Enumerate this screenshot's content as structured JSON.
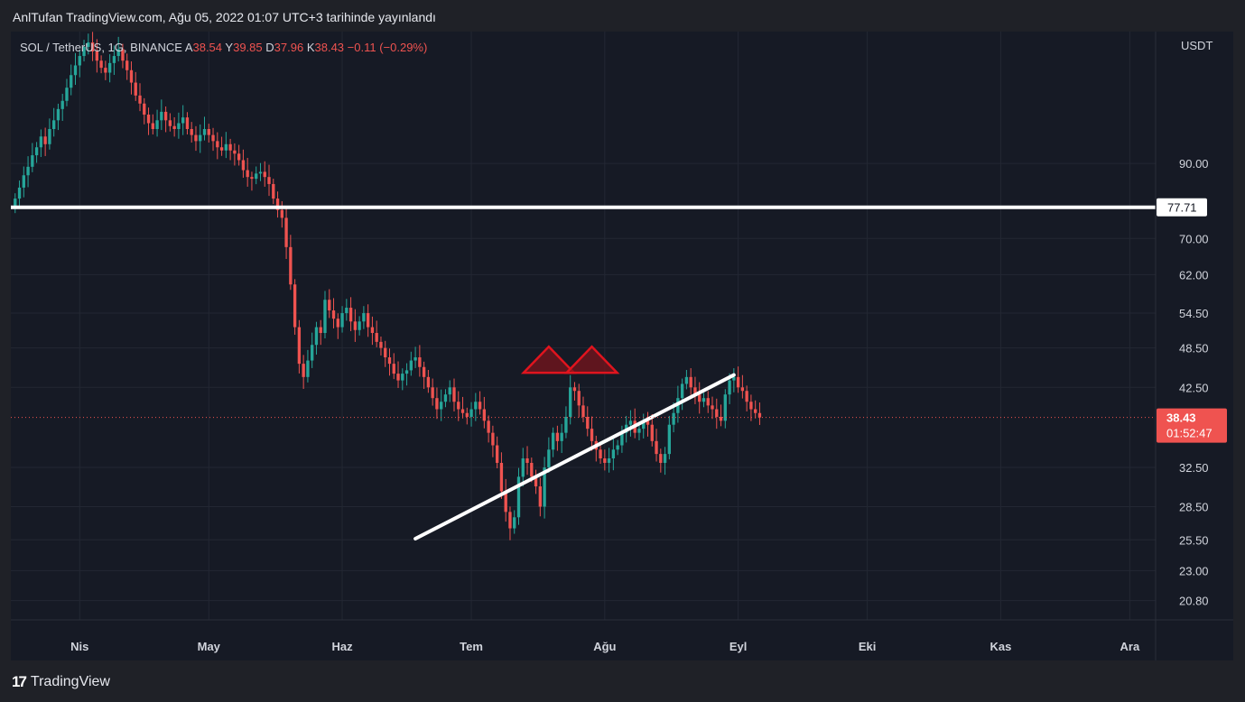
{
  "header": {
    "publish_line": "AnlTufan TradingView.com, Ağu 05, 2022 01:07 UTC+3 tarihinde yayınlandı"
  },
  "symbol": {
    "name": "SOL / TetherUS, 1G, BINANCE",
    "open_label": "A",
    "open": "38.54",
    "high_label": "Y",
    "high": "39.85",
    "low_label": "D",
    "low": "37.96",
    "close_label": "K",
    "close": "38.43",
    "change": "−0.11 (−0.29%)"
  },
  "footer": {
    "brand": "TradingView",
    "logo_glyph": "17"
  },
  "colors": {
    "up": "#26a69a",
    "down": "#ef5350",
    "background": "#161a25",
    "grid": "#232733",
    "axis_text": "#d1d4dc"
  },
  "chart_data": {
    "type": "candlestick",
    "scale": "log",
    "currency": "USDT",
    "y_ticks": [
      "90.00",
      "70.00",
      "62.00",
      "54.50",
      "48.50",
      "42.50",
      "32.50",
      "28.50",
      "25.50",
      "23.00",
      "20.80"
    ],
    "x_ticks": [
      "Nis",
      "May",
      "Haz",
      "Tem",
      "Ağu",
      "Eyl",
      "Eki",
      "Kas",
      "Ara"
    ],
    "x_range": [
      "2022-03-16",
      "2022-12-07"
    ],
    "y_range": [
      19.5,
      140
    ],
    "current_price": {
      "value": "38.43",
      "countdown": "01:52:47"
    },
    "horizontal_level": {
      "value": 77.71,
      "label": "77.71"
    },
    "trendline": {
      "from": {
        "date": "2022-06-18",
        "price": 25.6
      },
      "to": {
        "date": "2022-08-31",
        "price": 44.3
      }
    },
    "markers": [
      {
        "type": "triangle",
        "date": "2022-07-19",
        "price": 46.0
      },
      {
        "type": "triangle",
        "date": "2022-07-29",
        "price": 46.0
      }
    ],
    "ohlc_closes": [
      80.0,
      83.0,
      86.5,
      89.0,
      92.5,
      95.0,
      98.5,
      96.0,
      101.0,
      104.0,
      108.0,
      111.0,
      116.0,
      121.0,
      125.0,
      129.0,
      133.0,
      135.0,
      131.0,
      127.0,
      124.0,
      122.0,
      126.0,
      129.0,
      132.0,
      127.0,
      123.0,
      118.0,
      113.0,
      110.0,
      106.0,
      103.0,
      101.0,
      104.0,
      107.0,
      104.0,
      102.0,
      101.0,
      103.0,
      105.0,
      101.0,
      99.0,
      97.0,
      99.0,
      101.0,
      99.0,
      97.0,
      95.0,
      94.0,
      96.0,
      94.0,
      93.0,
      91.0,
      88.0,
      86.0,
      85.5,
      87.0,
      87.5,
      86.0,
      84.0,
      80.0,
      77.0,
      75.0,
      68.0,
      60.0,
      52.0,
      46.0,
      44.0,
      46.5,
      49.0,
      52.0,
      51.0,
      57.0,
      55.0,
      53.5,
      52.0,
      54.5,
      55.5,
      53.0,
      51.5,
      53.0,
      54.5,
      52.0,
      51.0,
      49.5,
      48.5,
      47.0,
      46.0,
      44.5,
      43.5,
      44.5,
      45.0,
      46.5,
      47.0,
      45.5,
      44.0,
      42.5,
      41.0,
      39.5,
      40.5,
      41.5,
      42.5,
      40.5,
      39.5,
      39.0,
      38.5,
      39.5,
      40.5,
      39.5,
      38.0,
      36.5,
      35.0,
      33.0,
      30.0,
      28.0,
      26.5,
      27.5,
      31.5,
      33.5,
      33.0,
      31.5,
      30.5,
      28.5,
      32.5,
      34.5,
      36.5,
      35.5,
      36.5,
      38.5,
      42.5,
      42.0,
      40.0,
      38.5,
      37.0,
      35.5,
      34.5,
      33.5,
      33.0,
      33.5,
      34.5,
      35.0,
      36.5,
      37.5,
      38.0,
      36.5,
      37.0,
      38.0,
      37.5,
      35.5,
      34.0,
      33.0,
      34.0,
      37.5,
      39.0,
      41.0,
      43.0,
      44.0,
      42.5,
      41.5,
      40.5,
      41.0,
      40.0,
      39.5,
      38.5,
      38.0,
      41.5,
      43.5,
      44.0,
      42.5,
      42.0,
      40.5,
      39.5,
      39.0,
      38.43
    ]
  }
}
